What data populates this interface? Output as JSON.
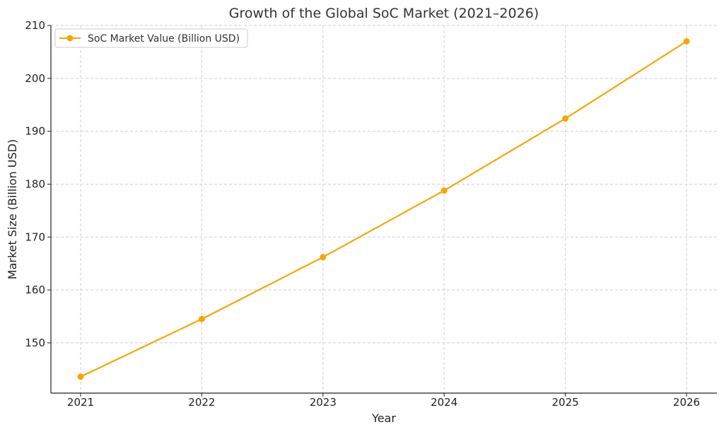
{
  "chart_data": {
    "type": "line",
    "title": "Growth of the Global SoC Market (2021–2026)",
    "xlabel": "Year",
    "ylabel": "Market Size (Billion USD)",
    "categories": [
      "2021",
      "2022",
      "2023",
      "2024",
      "2025",
      "2026"
    ],
    "yticks": [
      150,
      160,
      170,
      180,
      190,
      200,
      210
    ],
    "ylim": [
      140.5,
      210
    ],
    "grid": true,
    "legend_position": "top-left",
    "series": [
      {
        "name": "SoC Market Value (Billion USD)",
        "color": "#f5a70a",
        "values": [
          143.6,
          154.5,
          166.2,
          178.8,
          192.4,
          207.0
        ]
      }
    ]
  }
}
